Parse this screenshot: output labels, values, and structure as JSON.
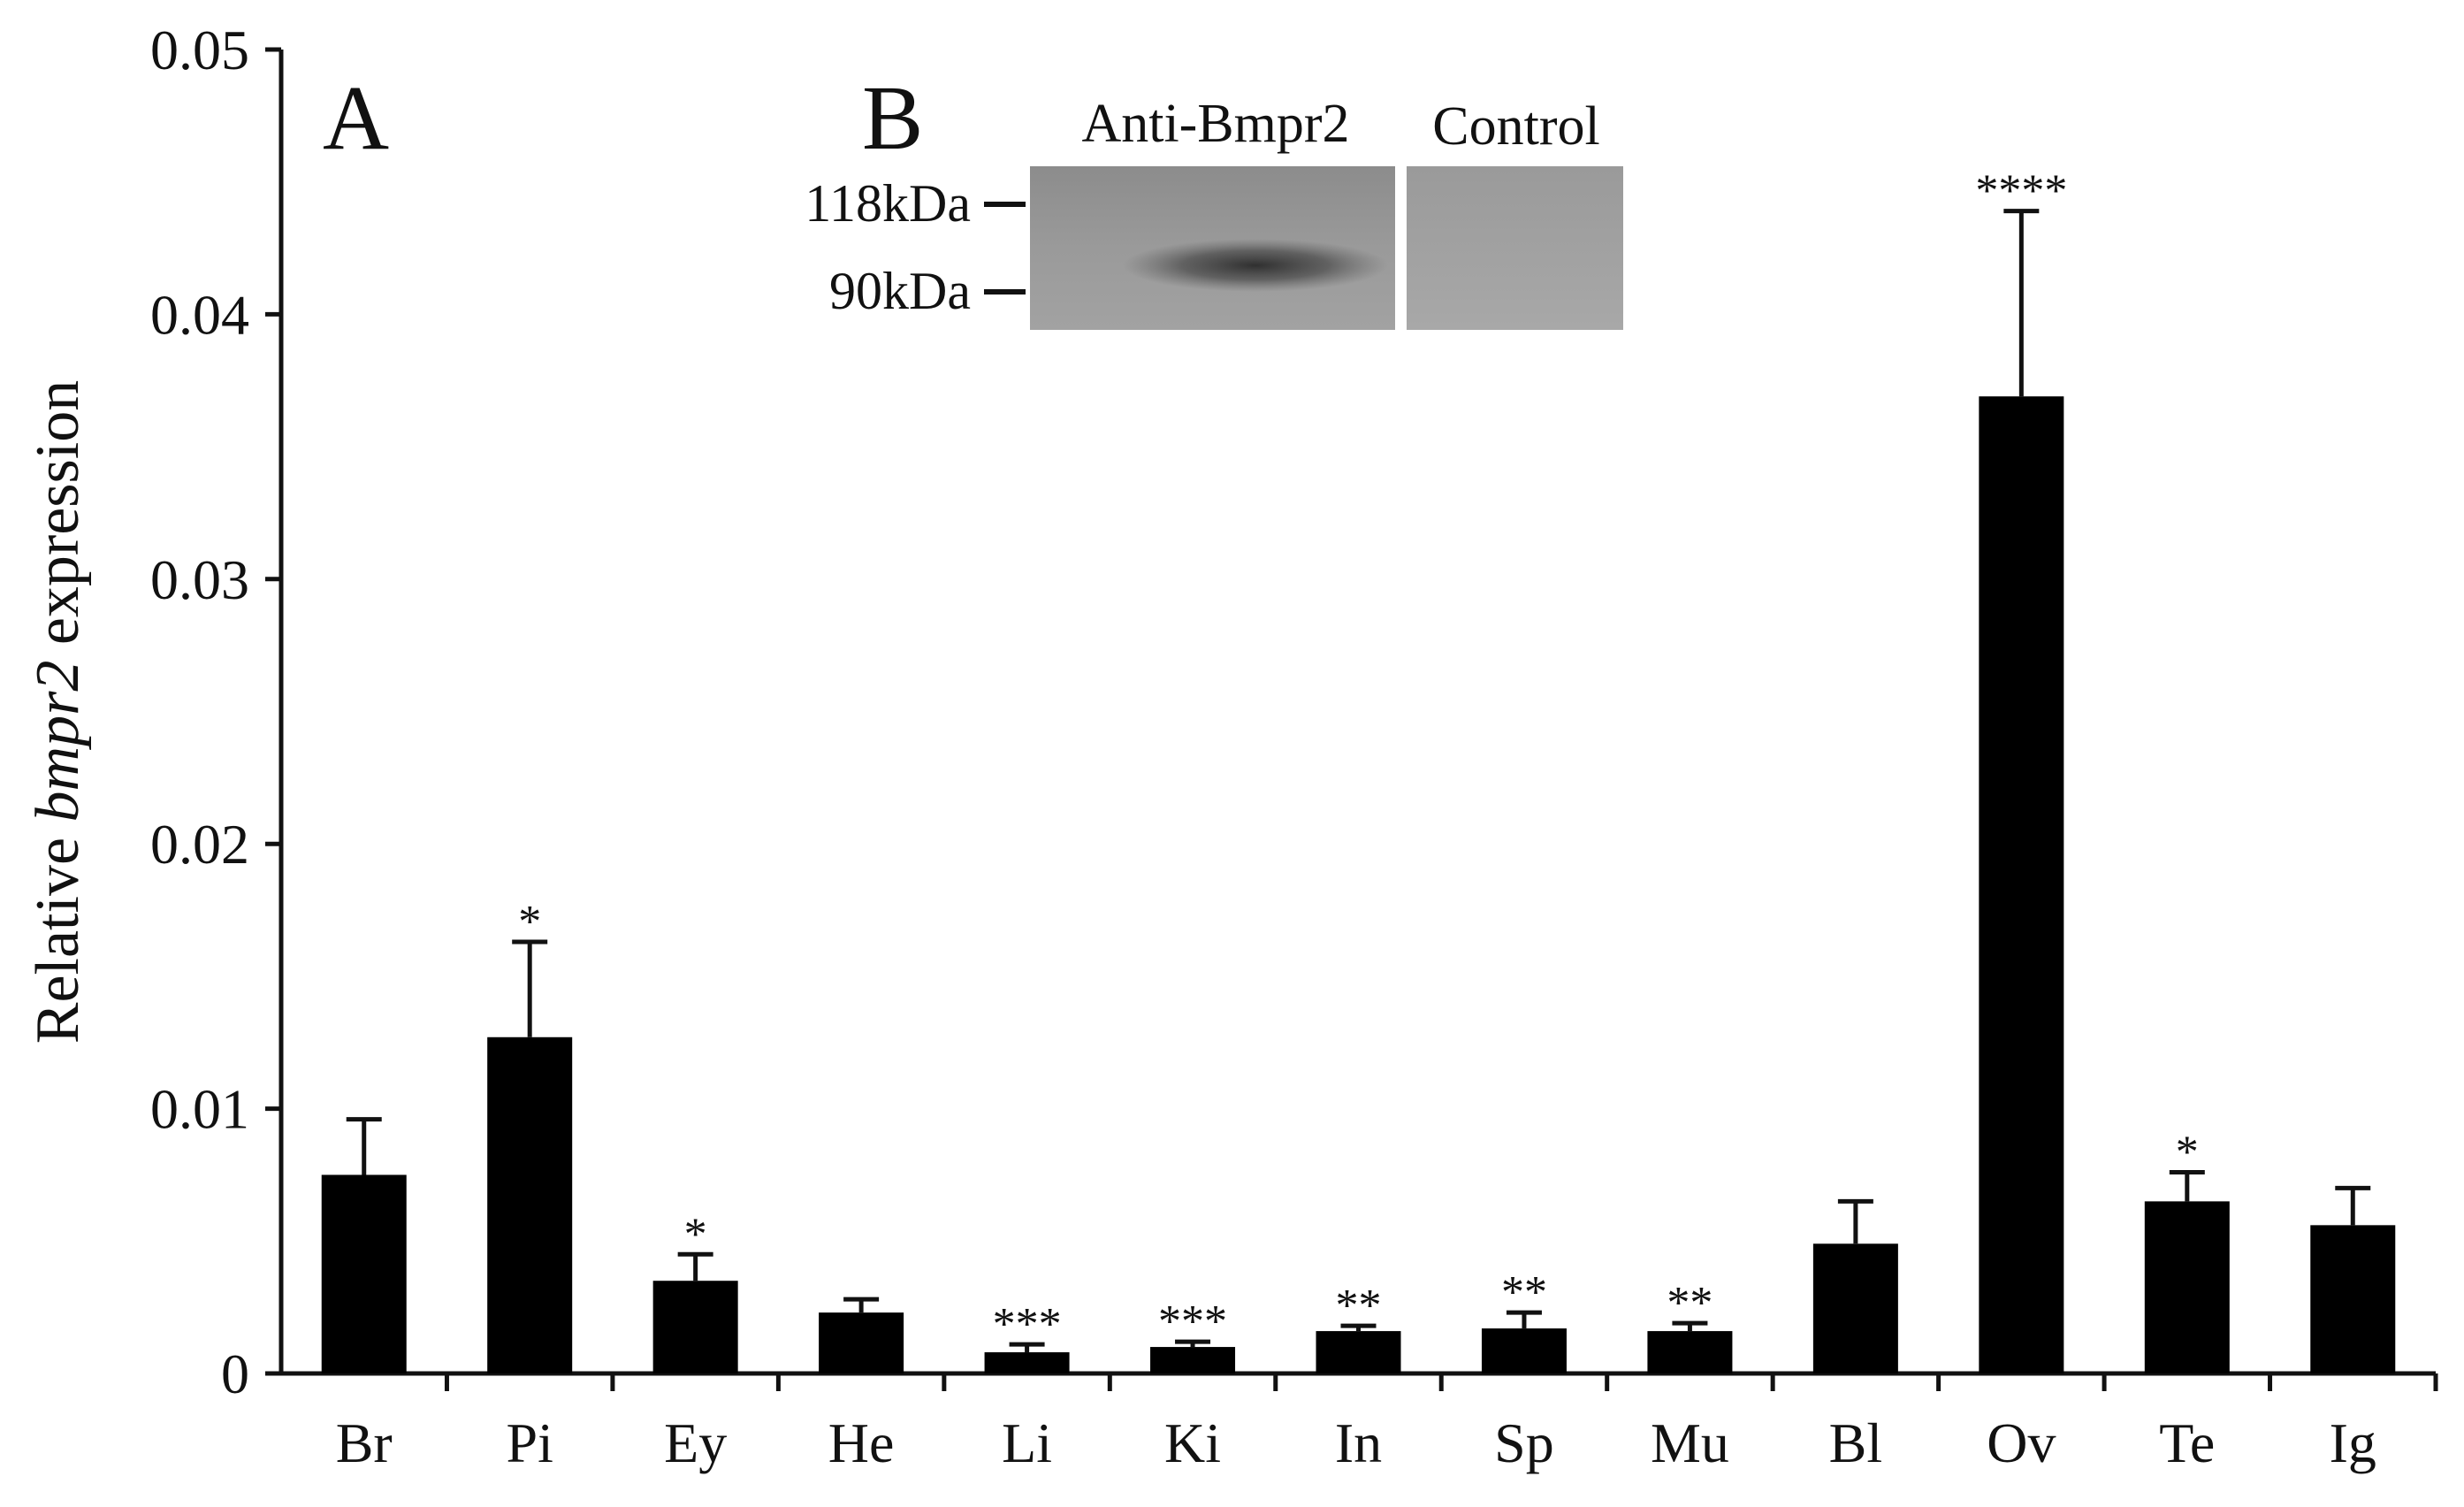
{
  "chart_data": {
    "type": "bar",
    "ylabel_prefix": "Relative ",
    "ylabel_gene": "bmpr2",
    "ylabel_suffix": " expression",
    "ylim": [
      0,
      0.05
    ],
    "yticks": [
      "0",
      "0.01",
      "0.02",
      "0.03",
      "0.04",
      "0.05"
    ],
    "categories": [
      "Br",
      "Pi",
      "Ey",
      "He",
      "Li",
      "Ki",
      "In",
      "Sp",
      "Mu",
      "Bl",
      "Ov",
      "Te",
      "Ig"
    ],
    "values": [
      0.0075,
      0.0127,
      0.0035,
      0.0023,
      0.0008,
      0.001,
      0.0016,
      0.0017,
      0.0016,
      0.0049,
      0.0369,
      0.0065,
      0.0056
    ],
    "errors": [
      0.0021,
      0.0036,
      0.001,
      0.0005,
      0.0003,
      0.0002,
      0.0002,
      0.0006,
      0.0003,
      0.0016,
      0.007,
      0.0011,
      0.0014
    ],
    "significance": [
      "",
      "*",
      "*",
      "",
      "***",
      "***",
      "**",
      "**",
      "**",
      "",
      "****",
      "*",
      ""
    ],
    "bar_color": "#000000",
    "grid": false,
    "panel_label": "A"
  },
  "inset": {
    "panel_label": "B",
    "lane_labels": [
      "Anti-Bmpr2",
      "Control"
    ],
    "markers": [
      "118kDa",
      "90kDa"
    ]
  }
}
